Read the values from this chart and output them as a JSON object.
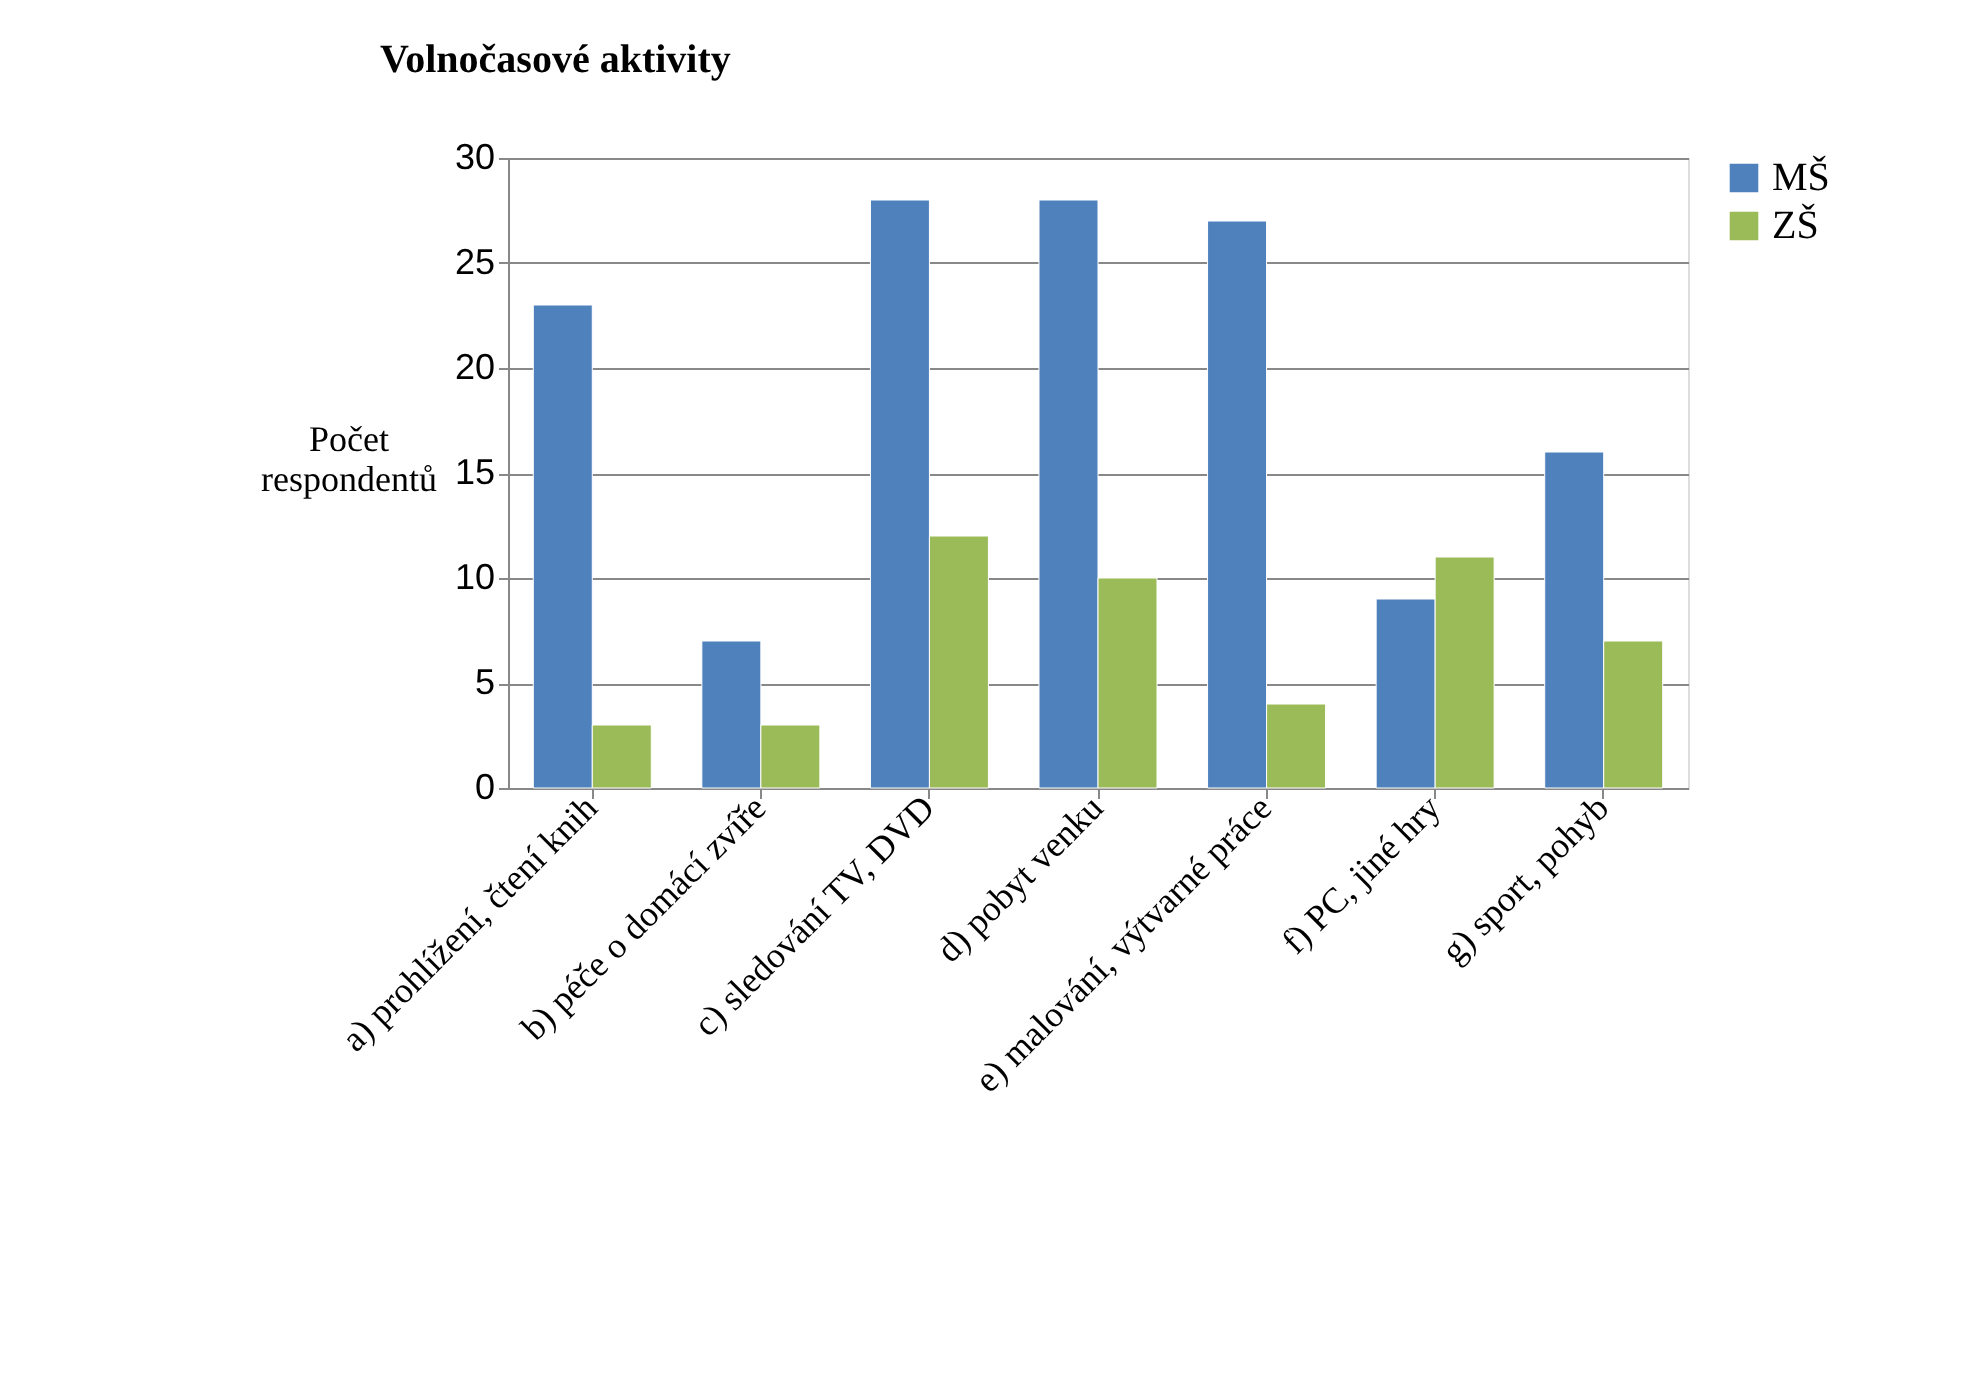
{
  "chart_data": {
    "type": "bar",
    "title": "Volnočasové aktivity",
    "ylabel": "Počet respondentů",
    "categories": [
      "a) prohlížení, čtení knih",
      "b) péče o domácí zvíře",
      "c) sledování TV, DVD",
      "d) pobyt venku",
      "e) malování, výtvarné práce",
      "f) PC, jiné hry",
      "g) sport, pohyb"
    ],
    "series": [
      {
        "name": "MŠ",
        "color": "#4f81bd",
        "values": [
          23,
          7,
          28,
          28,
          27,
          9,
          16
        ]
      },
      {
        "name": "ZŠ",
        "color": "#9bbb59",
        "values": [
          3,
          3,
          12,
          10,
          4,
          11,
          7
        ]
      }
    ],
    "ylim": [
      0,
      30
    ],
    "yticks": [
      0,
      5,
      10,
      15,
      20,
      25,
      30
    ],
    "grid": "y",
    "legend": "right"
  }
}
